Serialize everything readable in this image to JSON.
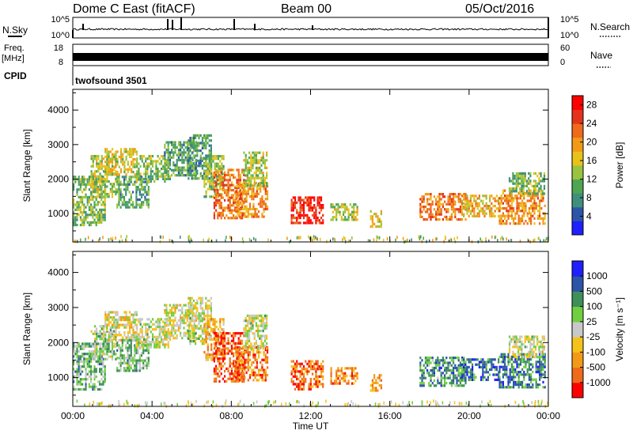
{
  "header": {
    "title": "Dome C East (fitACF)",
    "beam": "Beam 00",
    "date": "05/Oct/2016"
  },
  "status_panels": {
    "nsky_label": "N.Sky",
    "nsky_ticks": [
      "10^5",
      "10^0"
    ],
    "nsearch_label": "N.Search",
    "nsearch_ticks": [
      "10^5",
      "10^0"
    ],
    "freq_label": "Freq.",
    "freq_unit": "[MHz]",
    "freq_ticks": [
      "18",
      "8"
    ],
    "nave_label": "Nave",
    "nave_ticks": [
      "60",
      "0"
    ],
    "cpid_label": "CPID",
    "cpid_value": "twofsound 3501"
  },
  "chart_data": [
    {
      "type": "heatmap",
      "name": "power",
      "title": "",
      "xlabel": "",
      "ylabel": "Slant Range [km]",
      "x_ticks": [
        "00:00",
        "04:00",
        "08:00",
        "12:00",
        "16:00",
        "20:00",
        "00:00"
      ],
      "xlim_hours": [
        0,
        24
      ],
      "y_ticks": [
        1000,
        2000,
        3000,
        4000
      ],
      "ylim": [
        180,
        4600
      ],
      "colorbar_label": "Power [dB]",
      "colorbar_ticks": [
        4,
        8,
        12,
        16,
        20,
        24,
        28
      ],
      "colorbar_range": [
        0,
        30
      ],
      "colors": [
        "#1f1fff",
        "#2c55a8",
        "#3f8f7d",
        "#4fa552",
        "#98c440",
        "#e8c21a",
        "#f29a18",
        "#ef6a1a",
        "#e4331c",
        "#ff0000"
      ],
      "patches": [
        {
          "t": [
            0.0,
            1.6
          ],
          "r": [
            700,
            2100
          ],
          "v": 12
        },
        {
          "t": [
            0.9,
            2.2
          ],
          "r": [
            1500,
            2700
          ],
          "v": 14
        },
        {
          "t": [
            1.6,
            3.2
          ],
          "r": [
            2100,
            2900
          ],
          "v": 16
        },
        {
          "t": [
            2.2,
            3.8
          ],
          "r": [
            1200,
            2100
          ],
          "v": 10
        },
        {
          "t": [
            3.2,
            4.9
          ],
          "r": [
            1900,
            2700
          ],
          "v": 12
        },
        {
          "t": [
            4.6,
            6.2
          ],
          "r": [
            2100,
            3100
          ],
          "v": 10
        },
        {
          "t": [
            5.8,
            7.0
          ],
          "r": [
            2000,
            3300
          ],
          "v": 9
        },
        {
          "t": [
            6.6,
            7.6
          ],
          "r": [
            1500,
            2700
          ],
          "v": 13
        },
        {
          "t": [
            7.1,
            8.6
          ],
          "r": [
            900,
            2300
          ],
          "v": 22
        },
        {
          "t": [
            8.2,
            9.8
          ],
          "r": [
            900,
            1900
          ],
          "v": 20
        },
        {
          "t": [
            8.6,
            9.8
          ],
          "r": [
            1800,
            2800
          ],
          "v": 14
        },
        {
          "t": [
            11.0,
            12.6
          ],
          "r": [
            700,
            1500
          ],
          "v": 27
        },
        {
          "t": [
            13.0,
            14.4
          ],
          "r": [
            800,
            1300
          ],
          "v": 14
        },
        {
          "t": [
            15.0,
            15.6
          ],
          "r": [
            650,
            1100
          ],
          "v": 16
        },
        {
          "t": [
            17.5,
            19.8
          ],
          "r": [
            800,
            1600
          ],
          "v": 22
        },
        {
          "t": [
            19.6,
            21.5
          ],
          "r": [
            950,
            1550
          ],
          "v": 18
        },
        {
          "t": [
            21.5,
            23.8
          ],
          "r": [
            700,
            1700
          ],
          "v": 20
        },
        {
          "t": [
            22.0,
            23.8
          ],
          "r": [
            1600,
            2200
          ],
          "v": 12
        }
      ]
    },
    {
      "type": "heatmap",
      "name": "velocity",
      "title": "",
      "xlabel": "Time UT",
      "ylabel": "Slant Range [km]",
      "x_ticks": [
        "00:00",
        "04:00",
        "08:00",
        "12:00",
        "16:00",
        "20:00",
        "00:00"
      ],
      "xlim_hours": [
        0,
        24
      ],
      "y_ticks": [
        1000,
        2000,
        3000,
        4000
      ],
      "ylim": [
        180,
        4600
      ],
      "colorbar_label": "Velocity [m s⁻¹]",
      "colorbar_ticks": [
        "1000",
        "500",
        "100",
        "25",
        "-25",
        "-100",
        "-500",
        "-1000"
      ],
      "colors": [
        "#ff0000",
        "#ef6a1a",
        "#f29a18",
        "#f4c21a",
        "#c8c8c8",
        "#6fcf3f",
        "#3e8f5a",
        "#2c55a8",
        "#1f1fff"
      ],
      "patches": [
        {
          "t": [
            0.0,
            1.6
          ],
          "r": [
            700,
            2000
          ],
          "v": 0.6
        },
        {
          "t": [
            0.9,
            2.2
          ],
          "r": [
            1500,
            2500
          ],
          "v": 0.3
        },
        {
          "t": [
            1.6,
            3.2
          ],
          "r": [
            2100,
            2900
          ],
          "v": -0.3
        },
        {
          "t": [
            2.2,
            3.8
          ],
          "r": [
            1200,
            2100
          ],
          "v": 0.5
        },
        {
          "t": [
            3.2,
            4.9
          ],
          "r": [
            1900,
            2700
          ],
          "v": 0.0
        },
        {
          "t": [
            4.6,
            6.2
          ],
          "r": [
            2100,
            3100
          ],
          "v": -0.1
        },
        {
          "t": [
            5.8,
            7.0
          ],
          "r": [
            2000,
            3300
          ],
          "v": 0.0
        },
        {
          "t": [
            6.6,
            7.6
          ],
          "r": [
            1500,
            2700
          ],
          "v": -0.9
        },
        {
          "t": [
            7.1,
            8.6
          ],
          "r": [
            900,
            2300
          ],
          "v": -1.6
        },
        {
          "t": [
            8.2,
            9.8
          ],
          "r": [
            900,
            1900
          ],
          "v": -1.3
        },
        {
          "t": [
            8.6,
            9.8
          ],
          "r": [
            1800,
            2800
          ],
          "v": 0.0
        },
        {
          "t": [
            11.0,
            12.6
          ],
          "r": [
            700,
            1500
          ],
          "v": -1.4
        },
        {
          "t": [
            13.0,
            14.4
          ],
          "r": [
            800,
            1300
          ],
          "v": -1.2
        },
        {
          "t": [
            15.0,
            15.6
          ],
          "r": [
            650,
            1100
          ],
          "v": -1.0
        },
        {
          "t": [
            17.5,
            19.8
          ],
          "r": [
            800,
            1600
          ],
          "v": 1.0
        },
        {
          "t": [
            19.6,
            21.5
          ],
          "r": [
            950,
            1550
          ],
          "v": 1.3
        },
        {
          "t": [
            21.5,
            23.8
          ],
          "r": [
            700,
            1700
          ],
          "v": 1.1
        },
        {
          "t": [
            22.0,
            23.8
          ],
          "r": [
            1600,
            2200
          ],
          "v": 0.0
        }
      ]
    }
  ]
}
